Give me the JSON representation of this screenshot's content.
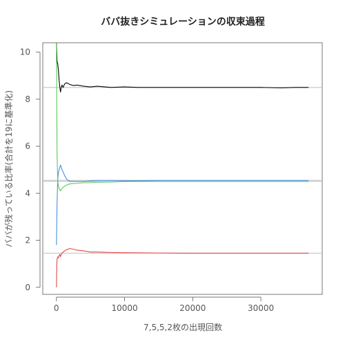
{
  "chart_data": {
    "type": "line",
    "title": "ババ抜きシミュレーションの収束過程",
    "xlabel": "7,5,5,2枚の出現回数",
    "ylabel": "ババが残っている比率(合計を19に基準化)",
    "xlim": [
      -2000,
      39000
    ],
    "ylim": [
      -0.3,
      10.4
    ],
    "x_ticks": [
      0,
      10000,
      20000,
      30000
    ],
    "x_tick_labels": [
      "0",
      "10000",
      "20000",
      "30000"
    ],
    "y_ticks": [
      0,
      2,
      4,
      6,
      8,
      10
    ],
    "y_tick_labels": [
      "0",
      "2",
      "4",
      "6",
      "8",
      "10"
    ],
    "grid": false,
    "reference_lines": [
      8.5,
      4.55,
      4.5,
      1.45
    ],
    "series": [
      {
        "color": "#000000",
        "x": [
          0,
          100,
          200,
          300,
          400,
          500,
          600,
          700,
          800,
          1000,
          1200,
          1500,
          2000,
          2500,
          3000,
          4000,
          5000,
          6000,
          8000,
          10000,
          12000,
          15000,
          20000,
          25000,
          30000,
          33000,
          35000,
          37000
        ],
        "y": [
          10.4,
          9.6,
          9.5,
          9.2,
          8.8,
          8.5,
          8.3,
          8.5,
          8.6,
          8.5,
          8.65,
          8.7,
          8.62,
          8.58,
          8.6,
          8.55,
          8.52,
          8.55,
          8.5,
          8.52,
          8.5,
          8.5,
          8.5,
          8.5,
          8.5,
          8.48,
          8.5,
          8.5
        ]
      },
      {
        "color": "#4a90d9",
        "x": [
          0,
          100,
          200,
          300,
          400,
          500,
          600,
          700,
          800,
          1000,
          1200,
          1500,
          2000,
          3000,
          4000,
          5000,
          6000,
          8000,
          10000,
          15000,
          20000,
          25000,
          30000,
          35000,
          37000
        ],
        "y": [
          1.8,
          3.6,
          4.6,
          4.9,
          5.0,
          5.1,
          5.2,
          5.1,
          5.0,
          4.9,
          4.75,
          4.6,
          4.5,
          4.5,
          4.5,
          4.52,
          4.55,
          4.55,
          4.53,
          4.55,
          4.55,
          4.55,
          4.55,
          4.55,
          4.55
        ]
      },
      {
        "color": "#5cc75c",
        "x": [
          0,
          100,
          200,
          300,
          400,
          500,
          600,
          700,
          800,
          1000,
          1200,
          1500,
          2000,
          3000,
          4000,
          5000,
          6000,
          8000,
          10000,
          15000,
          20000,
          25000,
          30000,
          35000,
          37000
        ],
        "y": [
          10.4,
          5.6,
          4.5,
          4.3,
          4.2,
          4.15,
          4.1,
          4.15,
          4.2,
          4.25,
          4.3,
          4.35,
          4.4,
          4.42,
          4.45,
          4.45,
          4.47,
          4.48,
          4.5,
          4.5,
          4.5,
          4.5,
          4.5,
          4.5,
          4.5
        ]
      },
      {
        "color": "#e04848",
        "x": [
          0,
          50,
          100,
          200,
          300,
          400,
          500,
          600,
          700,
          800,
          1000,
          1200,
          1500,
          2000,
          2500,
          3000,
          4000,
          5000,
          6000,
          8000,
          10000,
          15000,
          20000,
          25000,
          30000,
          35000,
          37000
        ],
        "y": [
          0.0,
          0.9,
          1.2,
          1.3,
          1.25,
          1.35,
          1.4,
          1.3,
          1.4,
          1.45,
          1.5,
          1.55,
          1.6,
          1.65,
          1.62,
          1.58,
          1.55,
          1.5,
          1.5,
          1.48,
          1.47,
          1.46,
          1.45,
          1.45,
          1.45,
          1.45,
          1.45
        ]
      }
    ]
  }
}
